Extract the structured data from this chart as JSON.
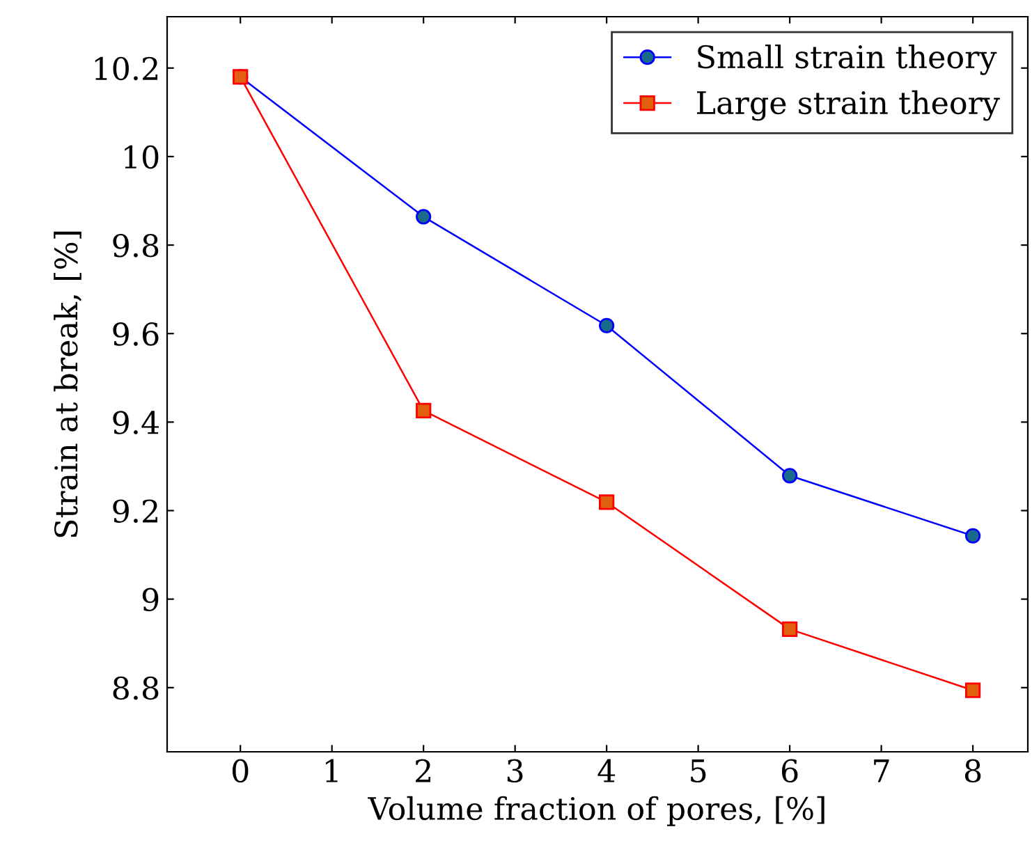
{
  "chart_data": {
    "type": "line",
    "xlabel": "Volume fraction of pores, [%]",
    "ylabel": "Strain at break, [%]",
    "x": [
      0,
      2,
      4,
      6,
      8
    ],
    "series": [
      {
        "name": "Small strain theory",
        "color": "#0000ff",
        "marker": "circle",
        "values": [
          10.18,
          9.864,
          9.618,
          9.279,
          9.143
        ]
      },
      {
        "name": "Large strain theory",
        "color": "#ff0000",
        "marker": "square",
        "values": [
          10.18,
          9.426,
          9.219,
          8.932,
          8.794
        ]
      }
    ],
    "xlim": [
      -0.8,
      8.6
    ],
    "ylim": [
      8.655,
      10.316
    ],
    "xticks": [
      0,
      1,
      2,
      3,
      4,
      5,
      6,
      7,
      8
    ],
    "yticks": [
      {
        "value": 8.8,
        "label": "8.8"
      },
      {
        "value": 9,
        "label": "9"
      },
      {
        "value": 9.2,
        "label": "9.2"
      },
      {
        "value": 9.4,
        "label": "9.4"
      },
      {
        "value": 9.6,
        "label": "9.6"
      },
      {
        "value": 9.8,
        "label": "9.8"
      },
      {
        "value": 10,
        "label": "10"
      },
      {
        "value": 10.2,
        "label": "10.2"
      }
    ],
    "grid": false,
    "legend": "top right",
    "line_style": "solid"
  }
}
